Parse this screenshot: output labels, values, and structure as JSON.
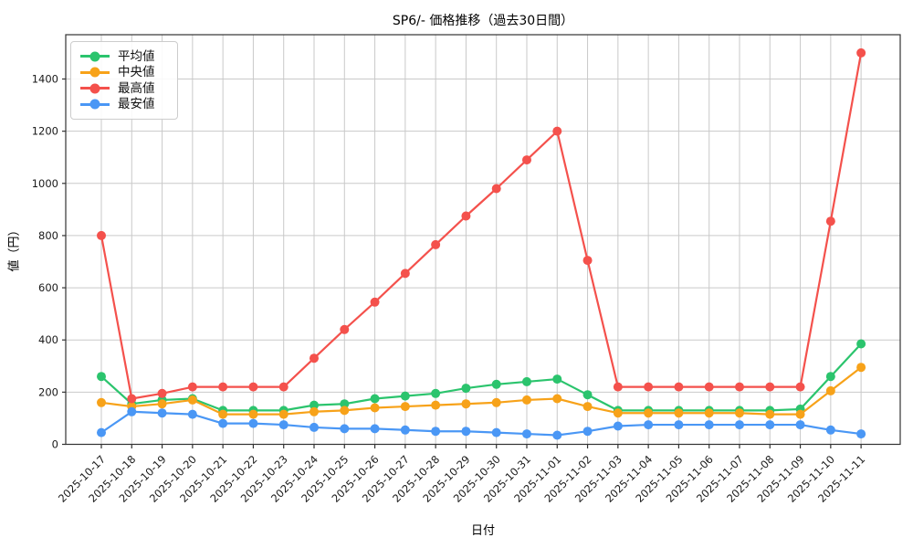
{
  "chart_data": {
    "type": "line",
    "title": "SP6/- 価格推移（過去30日間）",
    "xlabel": "日付",
    "ylabel": "値（円）",
    "grid": true,
    "legend_position": "upper-left",
    "ylim": [
      0,
      1570
    ],
    "yticks": [
      0,
      200,
      400,
      600,
      800,
      1000,
      1200,
      1400
    ],
    "categories": [
      "2025-10-17",
      "2025-10-18",
      "2025-10-19",
      "2025-10-20",
      "2025-10-21",
      "2025-10-22",
      "2025-10-23",
      "2025-10-24",
      "2025-10-25",
      "2025-10-26",
      "2025-10-27",
      "2025-10-28",
      "2025-10-29",
      "2025-10-30",
      "2025-10-31",
      "2025-11-01",
      "2025-11-02",
      "2025-11-03",
      "2025-11-04",
      "2025-11-05",
      "2025-11-06",
      "2025-11-07",
      "2025-11-08",
      "2025-11-09",
      "2025-11-10",
      "2025-11-11"
    ],
    "series": [
      {
        "key": "mean",
        "name": "平均値",
        "color": "#2bc46d",
        "values": [
          260,
          155,
          170,
          175,
          130,
          130,
          130,
          150,
          155,
          175,
          185,
          195,
          215,
          230,
          240,
          250,
          190,
          130,
          130,
          130,
          130,
          130,
          130,
          135,
          260,
          385
        ]
      },
      {
        "key": "median",
        "name": "中央値",
        "color": "#f7a219",
        "values": [
          160,
          145,
          155,
          170,
          115,
          115,
          115,
          125,
          130,
          140,
          145,
          150,
          155,
          160,
          170,
          175,
          145,
          120,
          120,
          120,
          120,
          120,
          115,
          115,
          205,
          295
        ]
      },
      {
        "key": "max",
        "name": "最高値",
        "color": "#f4514c",
        "values": [
          800,
          175,
          195,
          220,
          220,
          220,
          220,
          330,
          440,
          545,
          655,
          765,
          875,
          980,
          1090,
          1200,
          705,
          220,
          220,
          220,
          220,
          220,
          220,
          220,
          855,
          1500
        ]
      },
      {
        "key": "min",
        "name": "最安値",
        "color": "#4a97f5",
        "values": [
          45,
          125,
          120,
          115,
          80,
          80,
          75,
          65,
          60,
          60,
          55,
          50,
          50,
          45,
          40,
          35,
          50,
          70,
          75,
          75,
          75,
          75,
          75,
          75,
          55,
          40
        ]
      }
    ]
  }
}
